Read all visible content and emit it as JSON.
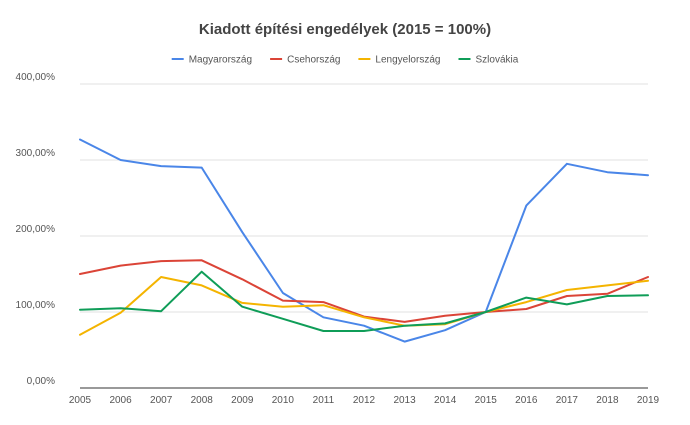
{
  "chart_data": {
    "type": "line",
    "title": "Kiadott építési engedélyek (2015 = 100%)",
    "xlabel": "",
    "ylabel": "",
    "categories": [
      "2005",
      "2006",
      "2007",
      "2008",
      "2009",
      "2010",
      "2011",
      "2012",
      "2013",
      "2014",
      "2015",
      "2016",
      "2017",
      "2018",
      "2019"
    ],
    "ylim": [
      0,
      400
    ],
    "yticks": [
      0,
      100,
      200,
      300,
      400
    ],
    "ytick_labels": [
      "0,00%",
      "100,00%",
      "200,00%",
      "300,00%",
      "400,00%"
    ],
    "grid": true,
    "legend_position": "top",
    "series": [
      {
        "name": "Magyarország",
        "color": "#4a86e8",
        "values": [
          327,
          300,
          292,
          290,
          205,
          125,
          93,
          82,
          61,
          76,
          100,
          240,
          295,
          284,
          280
        ]
      },
      {
        "name": "Csehország",
        "color": "#db4437",
        "values": [
          150,
          161,
          167,
          168,
          143,
          115,
          113,
          94,
          87,
          95,
          100,
          104,
          121,
          124,
          146
        ]
      },
      {
        "name": "Lengyelország",
        "color": "#f4b400",
        "values": [
          70,
          99,
          146,
          135,
          112,
          107,
          109,
          93,
          82,
          84,
          100,
          113,
          129,
          135,
          141
        ]
      },
      {
        "name": "Szlovákia",
        "color": "#0f9d58",
        "values": [
          103,
          105,
          101,
          153,
          107,
          91,
          75,
          75,
          82,
          85,
          100,
          119,
          110,
          121,
          122
        ]
      }
    ]
  }
}
